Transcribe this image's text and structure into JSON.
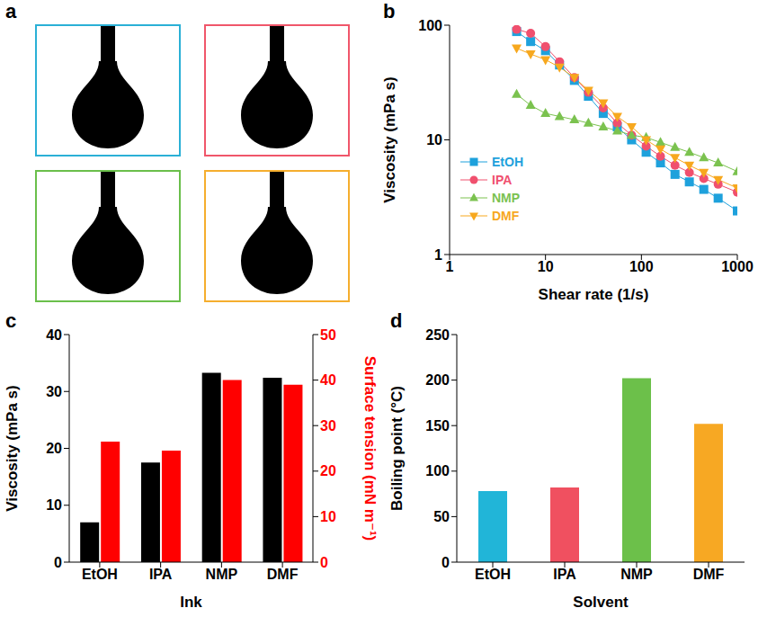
{
  "chart_data": [
    {
      "panel": "a",
      "type": "image",
      "colors": [
        "#2ab0d6",
        "#f0566a",
        "#6abf4b",
        "#f5ae2e"
      ]
    },
    {
      "panel": "b",
      "type": "line",
      "log": true,
      "x": [
        5,
        7,
        10,
        14,
        20,
        28,
        40,
        56,
        79,
        112,
        158,
        224,
        316,
        447,
        631,
        1000
      ],
      "xlim": [
        1,
        1000
      ],
      "xticks": [
        1,
        10,
        100,
        1000
      ],
      "ylim": [
        1,
        100
      ],
      "yticks": [
        1,
        10,
        100
      ],
      "xlabel": "Shear rate (1/s)",
      "ylabel": "Viscosity (mPa s)",
      "legend": "left",
      "series": [
        {
          "name": "EtOH",
          "color": "#1ea1dc",
          "marker": "square",
          "values": [
            88,
            72,
            60,
            45,
            33,
            24,
            17,
            13,
            10,
            7.8,
            6.3,
            5,
            4.3,
            3.7,
            3.1,
            2.4
          ]
        },
        {
          "name": "IPA",
          "color": "#f0506e",
          "marker": "circle",
          "values": [
            92,
            85,
            65,
            48,
            35,
            26,
            19,
            14,
            11,
            8.8,
            7.2,
            6,
            5.2,
            4.6,
            4.1,
            3.5
          ]
        },
        {
          "name": "NMP",
          "color": "#7bc24f",
          "marker": "triangle",
          "values": [
            25,
            20,
            17,
            16,
            15,
            14,
            13,
            12,
            11,
            10.5,
            9.5,
            8.6,
            7.8,
            7,
            6.3,
            5.3
          ]
        },
        {
          "name": "DMF",
          "color": "#f7a81e",
          "marker": "triangle-down",
          "values": [
            63,
            56,
            50,
            43,
            35,
            27,
            21,
            16,
            13,
            10,
            8.3,
            7,
            6,
            5.2,
            4.5,
            3.8
          ]
        }
      ]
    },
    {
      "panel": "c",
      "type": "bar",
      "categories": [
        "EtOH",
        "IPA",
        "NMP",
        "DMF"
      ],
      "xlabel": "Ink",
      "ylabel": "Viscosity (mPa s)",
      "y2label": "Surface tension (mN m⁻¹)",
      "ylim": [
        0,
        40
      ],
      "yticks": [
        0,
        10,
        20,
        30,
        40
      ],
      "y2lim": [
        0,
        50
      ],
      "y2ticks": [
        0,
        10,
        20,
        30,
        40,
        50
      ],
      "series": [
        {
          "color": "#000000",
          "values": [
            7,
            17.5,
            33.3,
            32.4
          ]
        },
        {
          "color": "#ff0000",
          "axis": "y2",
          "values": [
            26.5,
            24.5,
            40,
            39
          ]
        }
      ]
    },
    {
      "panel": "d",
      "type": "bar",
      "categories": [
        "EtOH",
        "IPA",
        "NMP",
        "DMF"
      ],
      "values": [
        78,
        82,
        202,
        152
      ],
      "colors": [
        "#21b5d8",
        "#f05060",
        "#6cc04a",
        "#f7a823"
      ],
      "xlabel": "Solvent",
      "ylabel": "Boiling point (°C)",
      "ylim": [
        0,
        250
      ],
      "yticks": [
        0,
        50,
        100,
        150,
        200,
        250
      ]
    }
  ]
}
